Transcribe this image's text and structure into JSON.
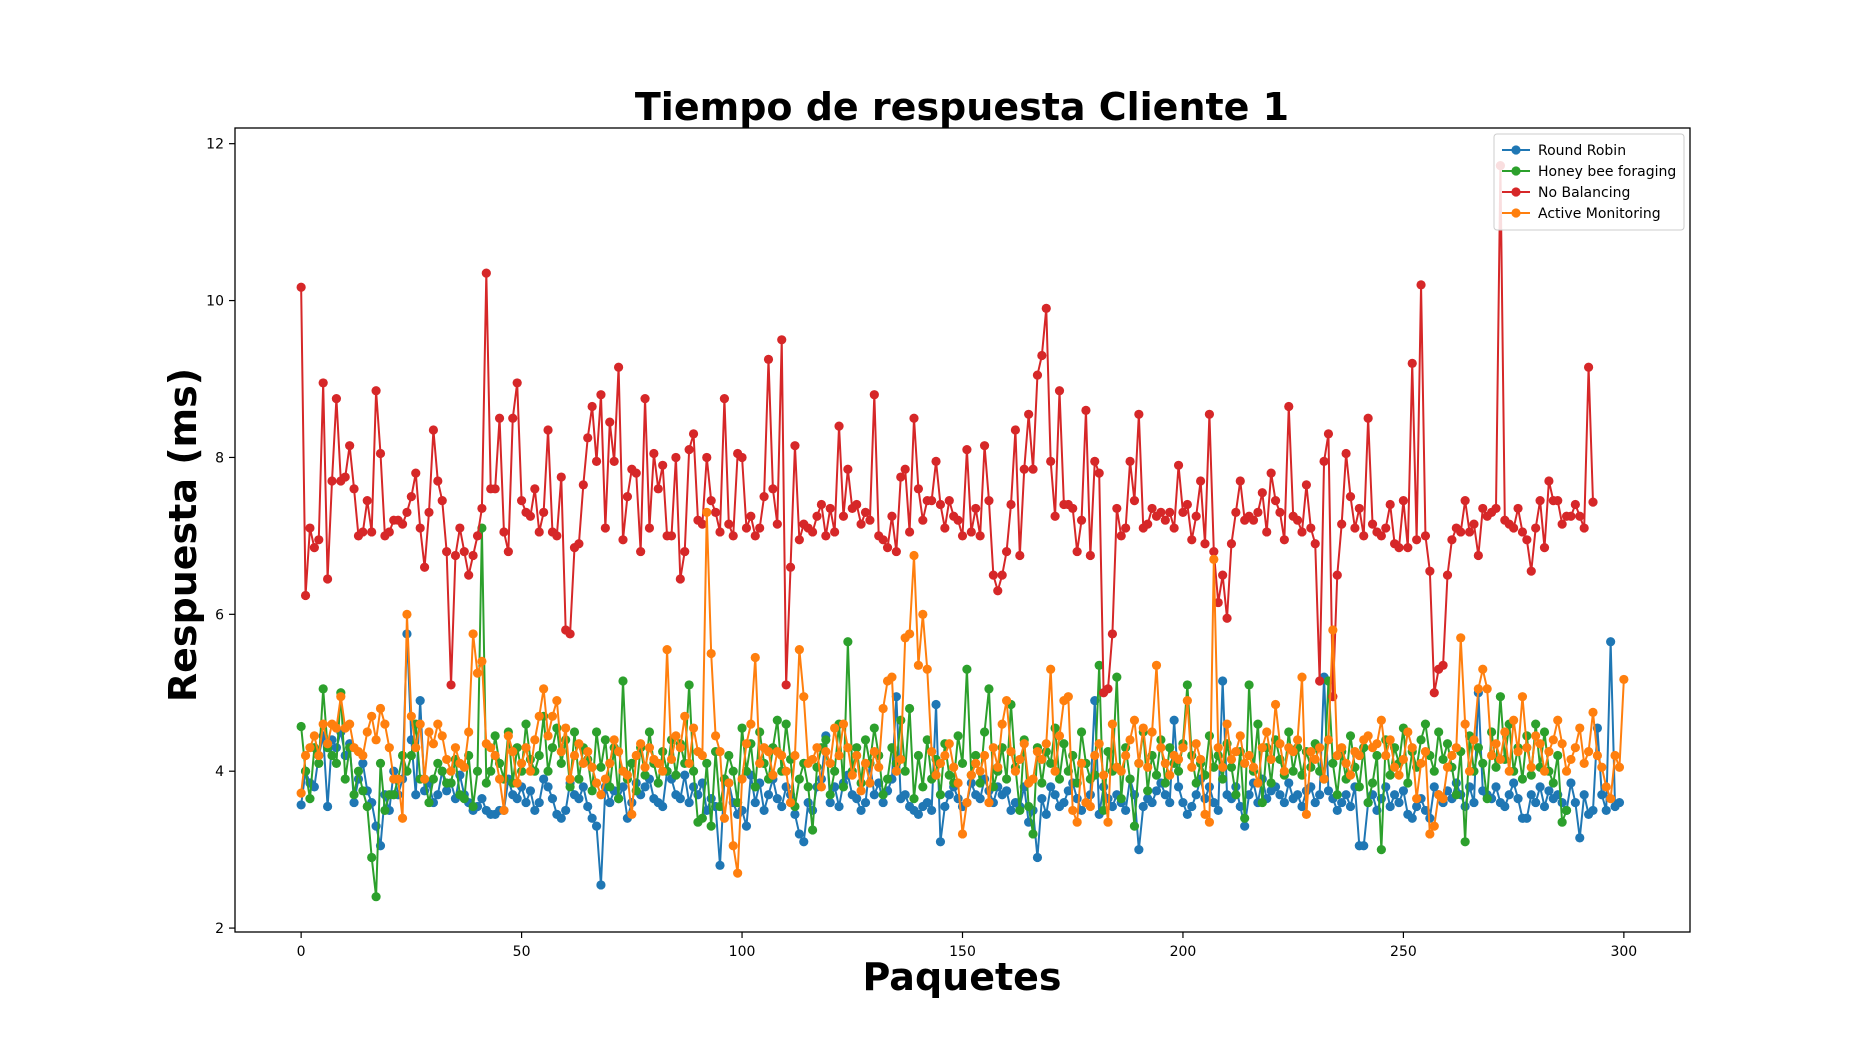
{
  "chart_data": {
    "type": "line",
    "title": "Tiempo de respuesta Cliente 1",
    "xlabel": "Paquetes",
    "ylabel": "Respuesta (ms)",
    "xlim": [
      -15,
      315
    ],
    "ylim": [
      1.95,
      12.2
    ],
    "xticks": [
      0,
      50,
      100,
      150,
      200,
      250,
      300
    ],
    "yticks": [
      2,
      4,
      6,
      8,
      10,
      12
    ],
    "grid": false,
    "legend_position": "top-right",
    "series": [
      {
        "name": "Round Robin",
        "color": "#1f77b4",
        "values": [
          3.57,
          4.0,
          3.85,
          3.8,
          4.2,
          4.45,
          3.55,
          4.4,
          4.3,
          4.5,
          4.2,
          4.35,
          3.6,
          3.9,
          4.1,
          3.75,
          3.6,
          3.3,
          3.05,
          3.7,
          3.5,
          4.0,
          3.7,
          3.9,
          5.75,
          4.4,
          3.7,
          4.9,
          3.75,
          3.85,
          3.6,
          3.7,
          4.0,
          3.75,
          3.85,
          3.65,
          3.95,
          3.7,
          3.6,
          3.5,
          3.55,
          3.65,
          3.5,
          3.45,
          3.45,
          3.5,
          3.5,
          3.9,
          3.7,
          3.65,
          3.8,
          3.6,
          3.75,
          3.5,
          3.6,
          3.9,
          3.8,
          3.65,
          3.45,
          3.4,
          3.5,
          3.85,
          3.7,
          3.65,
          3.8,
          3.55,
          3.4,
          3.3,
          2.55,
          3.8,
          3.6,
          3.75,
          3.65,
          3.8,
          3.4,
          3.6,
          3.85,
          3.7,
          3.8,
          3.9,
          3.65,
          3.6,
          3.55,
          4.0,
          3.9,
          3.7,
          3.65,
          3.95,
          3.6,
          3.8,
          3.7,
          3.85,
          3.5,
          3.65,
          3.55,
          2.8,
          3.9,
          3.85,
          3.6,
          3.45,
          3.5,
          3.3,
          3.95,
          3.6,
          3.85,
          3.5,
          3.7,
          3.9,
          3.65,
          3.55,
          3.8,
          3.7,
          3.45,
          3.2,
          3.1,
          3.6,
          3.5,
          3.8,
          3.9,
          4.45,
          3.6,
          3.8,
          3.55,
          3.85,
          3.95,
          3.7,
          3.65,
          3.5,
          3.6,
          4.1,
          3.7,
          3.85,
          3.6,
          3.75,
          3.9,
          4.95,
          3.65,
          3.7,
          3.55,
          3.5,
          3.45,
          3.55,
          3.6,
          3.5,
          4.85,
          3.1,
          3.55,
          3.7,
          3.8,
          3.65,
          3.55,
          3.6,
          3.85,
          3.7,
          3.65,
          3.9,
          3.75,
          3.6,
          3.8,
          3.7,
          3.75,
          3.5,
          3.6,
          3.55,
          3.8,
          3.35,
          3.5,
          2.9,
          3.65,
          3.45,
          3.8,
          3.7,
          3.55,
          3.6,
          3.75,
          3.85,
          3.65,
          3.5,
          3.6,
          3.7,
          4.9,
          3.45,
          3.8,
          3.65,
          3.55,
          3.7,
          3.6,
          3.5,
          3.9,
          3.7,
          3.0,
          3.55,
          3.65,
          3.6,
          3.75,
          3.85,
          3.7,
          3.6,
          4.65,
          3.8,
          3.6,
          3.45,
          3.55,
          3.7,
          3.9,
          3.65,
          3.8,
          3.6,
          3.5,
          5.15,
          3.7,
          3.65,
          3.8,
          3.55,
          3.3,
          3.7,
          3.85,
          3.6,
          3.9,
          3.65,
          3.75,
          3.8,
          3.7,
          3.6,
          3.85,
          3.65,
          3.7,
          3.55,
          3.75,
          3.8,
          3.6,
          3.7,
          5.2,
          3.75,
          3.65,
          3.5,
          3.6,
          3.7,
          3.55,
          3.8,
          3.05,
          3.05,
          3.6,
          3.7,
          3.5,
          3.65,
          3.8,
          3.55,
          3.7,
          3.6,
          3.75,
          3.45,
          3.4,
          3.55,
          3.65,
          3.5,
          3.4,
          3.8,
          3.7,
          3.6,
          3.75,
          3.65,
          3.85,
          3.7,
          3.55,
          3.8,
          3.6,
          5.0,
          3.75,
          3.7,
          3.65,
          3.8,
          3.6,
          3.55,
          3.7,
          3.85,
          3.65,
          3.4,
          3.4,
          3.7,
          3.6,
          3.8,
          3.55,
          3.75,
          3.65,
          3.7,
          3.6,
          3.5,
          3.85,
          3.6,
          3.15,
          3.7,
          3.45,
          3.5,
          4.55,
          3.7,
          3.5,
          5.65,
          3.55,
          3.6
        ]
      },
      {
        "name": "Honey bee foraging",
        "color": "#2ca02c",
        "values": [
          4.57,
          4.0,
          3.65,
          4.3,
          4.1,
          5.05,
          4.3,
          4.2,
          4.1,
          5.0,
          3.9,
          4.3,
          3.7,
          4.0,
          3.75,
          3.55,
          2.9,
          2.4,
          4.1,
          3.5,
          3.7,
          3.7,
          3.9,
          4.2,
          4.0,
          4.2,
          4.6,
          3.9,
          3.9,
          3.6,
          3.9,
          4.1,
          4.0,
          3.85,
          3.85,
          4.15,
          3.7,
          3.65,
          4.2,
          3.55,
          4.0,
          7.1,
          3.85,
          4.0,
          4.45,
          4.1,
          3.9,
          4.5,
          3.85,
          4.3,
          4.0,
          4.6,
          4.15,
          4.0,
          4.2,
          4.7,
          4.0,
          4.3,
          4.55,
          4.1,
          4.4,
          3.8,
          4.5,
          3.9,
          4.3,
          4.15,
          3.75,
          4.5,
          4.05,
          4.4,
          3.8,
          4.3,
          3.65,
          5.15,
          3.9,
          4.1,
          3.75,
          4.3,
          3.95,
          4.5,
          4.1,
          3.85,
          4.25,
          4.0,
          4.4,
          3.95,
          4.35,
          4.1,
          5.1,
          4.0,
          3.35,
          3.4,
          4.1,
          3.3,
          4.25,
          3.55,
          3.9,
          4.2,
          4.0,
          3.6,
          4.55,
          4.0,
          4.35,
          3.8,
          4.5,
          4.1,
          3.9,
          4.3,
          4.65,
          4.0,
          4.6,
          4.15,
          3.55,
          3.9,
          4.1,
          3.8,
          3.25,
          4.05,
          4.3,
          4.4,
          3.7,
          4.0,
          4.6,
          3.8,
          5.65,
          4.0,
          4.3,
          3.85,
          4.4,
          4.1,
          4.55,
          4.2,
          3.7,
          3.9,
          4.3,
          4.1,
          4.65,
          4.0,
          4.8,
          3.65,
          4.2,
          3.8,
          4.4,
          3.9,
          4.15,
          3.7,
          4.35,
          3.95,
          3.85,
          4.45,
          4.1,
          5.3,
          3.95,
          4.2,
          3.85,
          4.5,
          5.05,
          3.8,
          4.0,
          4.3,
          3.9,
          4.85,
          4.05,
          3.5,
          4.4,
          3.55,
          3.2,
          4.3,
          3.85,
          4.25,
          4.1,
          4.55,
          3.9,
          4.35,
          4.0,
          4.2,
          3.85,
          4.5,
          4.1,
          3.9,
          3.95,
          5.35,
          3.5,
          4.25,
          4.0,
          5.2,
          3.65,
          4.3,
          3.9,
          3.3,
          4.1,
          4.5,
          3.75,
          4.2,
          3.95,
          4.4,
          3.85,
          4.3,
          4.1,
          4.0,
          4.35,
          5.1,
          4.2,
          3.85,
          4.1,
          3.95,
          4.45,
          4.05,
          4.2,
          3.9,
          4.35,
          4.05,
          3.7,
          4.25,
          3.4,
          5.1,
          4.0,
          4.6,
          3.6,
          4.3,
          3.85,
          4.4,
          4.15,
          3.95,
          4.5,
          4.0,
          4.3,
          3.95,
          4.25,
          4.05,
          4.35,
          4.0,
          3.9,
          5.15,
          4.1,
          3.7,
          4.25,
          3.9,
          4.45,
          4.05,
          3.8,
          4.3,
          3.6,
          3.85,
          4.2,
          3.0,
          4.4,
          3.95,
          4.3,
          4.1,
          4.55,
          3.85,
          4.25,
          4.05,
          4.4,
          4.6,
          4.2,
          4.0,
          4.5,
          4.15,
          4.35,
          4.05,
          3.7,
          4.25,
          3.1,
          4.45,
          4.0,
          4.3,
          4.1,
          3.65,
          4.5,
          4.05,
          4.95,
          4.15,
          4.6,
          4.0,
          4.3,
          3.9,
          4.45,
          3.95,
          4.6,
          4.05,
          4.5,
          4.0,
          3.85,
          4.2,
          3.35,
          3.5
        ]
      },
      {
        "name": "No Balancing",
        "color": "#d62728",
        "values": [
          10.17,
          6.24,
          7.1,
          6.85,
          6.95,
          8.95,
          6.45,
          7.7,
          8.75,
          7.7,
          7.75,
          8.15,
          7.6,
          7.0,
          7.05,
          7.45,
          7.05,
          8.85,
          8.05,
          7.0,
          7.05,
          7.2,
          7.2,
          7.15,
          7.3,
          7.5,
          7.8,
          7.1,
          6.6,
          7.3,
          8.35,
          7.7,
          7.45,
          6.8,
          5.1,
          6.75,
          7.1,
          6.8,
          6.5,
          6.75,
          7.0,
          7.35,
          10.35,
          7.6,
          7.6,
          8.5,
          7.05,
          6.8,
          8.5,
          8.95,
          7.45,
          7.3,
          7.25,
          7.6,
          7.05,
          7.3,
          8.35,
          7.05,
          7.0,
          7.75,
          5.8,
          5.75,
          6.85,
          6.9,
          7.65,
          8.25,
          8.65,
          7.95,
          8.8,
          7.1,
          8.45,
          7.95,
          9.15,
          6.95,
          7.5,
          7.85,
          7.8,
          6.8,
          8.75,
          7.1,
          8.05,
          7.6,
          7.9,
          7.0,
          7.0,
          8.0,
          6.45,
          6.8,
          8.1,
          8.3,
          7.2,
          7.15,
          8.0,
          7.45,
          7.3,
          7.05,
          8.75,
          7.15,
          7.0,
          8.05,
          8.0,
          7.1,
          7.25,
          7.0,
          7.1,
          7.5,
          9.25,
          7.6,
          7.15,
          9.5,
          5.1,
          6.6,
          8.15,
          6.95,
          7.15,
          7.1,
          7.05,
          7.25,
          7.4,
          7.0,
          7.35,
          7.05,
          8.4,
          7.25,
          7.85,
          7.35,
          7.4,
          7.15,
          7.3,
          7.2,
          8.8,
          7.0,
          6.95,
          6.85,
          7.25,
          6.8,
          7.75,
          7.85,
          7.05,
          8.5,
          7.6,
          7.2,
          7.45,
          7.45,
          7.95,
          7.4,
          7.1,
          7.45,
          7.25,
          7.2,
          7.0,
          8.1,
          7.05,
          7.35,
          7.0,
          8.15,
          7.45,
          6.5,
          6.3,
          6.5,
          6.8,
          7.4,
          8.35,
          6.75,
          7.85,
          8.55,
          7.85,
          9.05,
          9.3,
          9.9,
          7.95,
          7.25,
          8.85,
          7.4,
          7.4,
          7.35,
          6.8,
          7.2,
          8.6,
          6.75,
          7.95,
          7.8,
          5.0,
          5.05,
          5.75,
          7.35,
          7.0,
          7.1,
          7.95,
          7.45,
          8.55,
          7.1,
          7.15,
          7.35,
          7.25,
          7.3,
          7.2,
          7.3,
          7.1,
          7.9,
          7.3,
          7.4,
          6.95,
          7.25,
          7.7,
          6.9,
          8.55,
          6.8,
          6.15,
          6.5,
          5.95,
          6.9,
          7.3,
          7.7,
          7.2,
          7.25,
          7.2,
          7.3,
          7.55,
          7.05,
          7.8,
          7.45,
          7.3,
          6.95,
          8.65,
          7.25,
          7.2,
          7.05,
          7.65,
          7.1,
          6.9,
          5.15,
          7.95,
          8.3,
          4.95,
          6.5,
          7.15,
          8.05,
          7.5,
          7.1,
          7.35,
          7.0,
          8.5,
          7.15,
          7.05,
          7.0,
          7.1,
          7.4,
          6.9,
          6.85,
          7.45,
          6.85,
          9.2,
          6.95,
          10.2,
          7.0,
          6.55,
          5.0,
          5.3,
          5.35,
          6.5,
          6.95,
          7.1,
          7.05,
          7.45,
          7.05,
          7.15,
          6.75,
          7.35,
          7.25,
          7.3,
          7.35,
          11.72,
          7.2,
          7.15,
          7.1,
          7.35,
          7.05,
          6.95,
          6.55,
          7.1,
          7.45,
          6.85,
          7.7,
          7.45,
          7.45,
          7.15,
          7.25,
          7.25,
          7.4,
          7.25,
          7.1,
          9.15,
          7.43
        ]
      },
      {
        "name": "Active Monitoring",
        "color": "#ff7f0e",
        "values": [
          3.72,
          4.2,
          4.3,
          4.45,
          4.2,
          4.6,
          4.35,
          4.6,
          4.55,
          4.95,
          4.55,
          4.6,
          4.3,
          4.25,
          4.2,
          4.5,
          4.7,
          4.4,
          4.8,
          4.6,
          4.3,
          3.9,
          3.9,
          3.4,
          6.0,
          4.7,
          4.3,
          4.6,
          3.9,
          4.5,
          4.35,
          4.6,
          4.45,
          4.15,
          4.0,
          4.3,
          4.1,
          4.05,
          4.5,
          5.75,
          5.25,
          5.4,
          4.35,
          4.3,
          4.2,
          3.9,
          3.5,
          4.45,
          4.25,
          3.85,
          4.1,
          4.3,
          4.0,
          4.4,
          4.7,
          5.05,
          4.45,
          4.7,
          4.9,
          4.25,
          4.55,
          3.9,
          4.2,
          4.35,
          4.1,
          4.25,
          4.05,
          3.85,
          3.7,
          3.9,
          4.1,
          4.4,
          4.25,
          4.0,
          3.95,
          3.45,
          4.2,
          4.35,
          4.05,
          4.3,
          4.15,
          4.1,
          4.0,
          5.55,
          4.15,
          4.45,
          4.3,
          4.7,
          4.1,
          4.55,
          4.25,
          4.2,
          7.3,
          5.5,
          4.45,
          4.25,
          3.4,
          3.85,
          3.05,
          2.7,
          3.9,
          4.35,
          4.6,
          5.45,
          4.1,
          4.3,
          4.25,
          3.95,
          4.25,
          4.2,
          4.0,
          3.6,
          4.2,
          5.55,
          4.95,
          4.1,
          4.15,
          4.3,
          3.8,
          4.25,
          4.1,
          4.55,
          4.2,
          4.6,
          4.3,
          3.95,
          4.2,
          3.75,
          4.1,
          3.85,
          4.25,
          4.05,
          4.8,
          5.15,
          5.2,
          4.0,
          4.15,
          5.7,
          5.75,
          6.75,
          5.35,
          6.0,
          5.3,
          4.25,
          3.95,
          4.1,
          4.2,
          4.35,
          4.05,
          3.85,
          3.2,
          3.6,
          3.95,
          4.1,
          4.0,
          4.2,
          3.6,
          4.3,
          4.05,
          4.6,
          4.9,
          4.25,
          4.0,
          4.15,
          4.35,
          3.85,
          3.9,
          4.25,
          4.15,
          4.35,
          5.3,
          4.0,
          4.45,
          4.9,
          4.95,
          3.5,
          3.35,
          4.1,
          3.6,
          3.55,
          4.2,
          4.35,
          3.95,
          3.35,
          4.6,
          4.05,
          4.0,
          4.2,
          4.4,
          4.65,
          4.1,
          4.55,
          4.05,
          4.5,
          5.35,
          4.3,
          4.1,
          3.95,
          4.2,
          4.15,
          4.3,
          4.9,
          4.05,
          4.35,
          4.15,
          3.45,
          3.35,
          6.7,
          4.3,
          4.05,
          4.6,
          4.15,
          4.25,
          4.45,
          4.1,
          4.2,
          4.05,
          3.85,
          4.3,
          4.5,
          4.15,
          4.85,
          4.35,
          4.0,
          4.3,
          4.25,
          4.4,
          5.2,
          3.45,
          4.25,
          4.15,
          4.3,
          3.9,
          4.4,
          5.8,
          4.2,
          4.3,
          4.1,
          3.95,
          4.25,
          4.2,
          4.4,
          4.45,
          4.3,
          4.35,
          4.65,
          4.2,
          4.4,
          4.05,
          3.95,
          4.15,
          4.5,
          4.3,
          3.65,
          4.1,
          4.25,
          3.2,
          3.3,
          3.7,
          3.65,
          4.05,
          4.2,
          4.3,
          5.7,
          4.6,
          4.0,
          4.4,
          5.05,
          5.3,
          5.05,
          4.2,
          4.35,
          4.15,
          4.5,
          4.0,
          4.65,
          4.25,
          4.95,
          4.3,
          4.05,
          4.45,
          4.35,
          4.0,
          4.25,
          4.4,
          4.65,
          4.35,
          4.0,
          4.15,
          4.3,
          4.55,
          4.1,
          4.25,
          4.75,
          4.2,
          4.05,
          3.8,
          3.65,
          4.2,
          4.05,
          5.17
        ]
      }
    ]
  }
}
